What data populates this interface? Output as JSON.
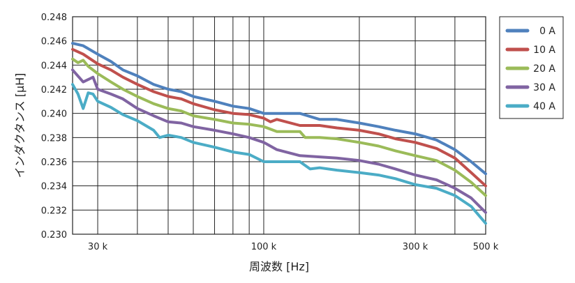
{
  "chart_data": {
    "type": "line",
    "title": "",
    "xlabel": "周波数 [Hz]",
    "ylabel": "インダクタンス [µH]",
    "x_scale": "log",
    "xlim": [
      25000,
      500000
    ],
    "ylim": [
      0.23,
      0.248
    ],
    "grid": true,
    "legend_position": "right",
    "x_ticks": [
      {
        "value": 30000,
        "label": "30 k"
      },
      {
        "value": 100000,
        "label": "100 k"
      },
      {
        "value": 300000,
        "label": "300 k"
      },
      {
        "value": 500000,
        "label": "500 k"
      }
    ],
    "y_ticks": [
      {
        "value": 0.23,
        "label": "0.230"
      },
      {
        "value": 0.232,
        "label": "0.232"
      },
      {
        "value": 0.234,
        "label": "0.234"
      },
      {
        "value": 0.236,
        "label": "0.236"
      },
      {
        "value": 0.238,
        "label": "0.238"
      },
      {
        "value": 0.24,
        "label": "0.240"
      },
      {
        "value": 0.242,
        "label": "0.242"
      },
      {
        "value": 0.244,
        "label": "0.244"
      },
      {
        "value": 0.246,
        "label": "0.246"
      },
      {
        "value": 0.248,
        "label": "0.248"
      }
    ],
    "series": [
      {
        "name": "0 A",
        "color": "#4f81bd",
        "x": [
          25000,
          27000,
          30000,
          33000,
          36000,
          40000,
          45000,
          50000,
          55000,
          60000,
          70000,
          80000,
          90000,
          100000,
          110000,
          130000,
          150000,
          170000,
          200000,
          230000,
          260000,
          300000,
          350000,
          400000,
          450000,
          500000
        ],
        "y": [
          0.2458,
          0.2456,
          0.2449,
          0.2443,
          0.2436,
          0.2431,
          0.2424,
          0.242,
          0.2418,
          0.2414,
          0.241,
          0.2406,
          0.2404,
          0.24,
          0.24,
          0.24,
          0.2395,
          0.2395,
          0.2392,
          0.2389,
          0.2386,
          0.2383,
          0.2378,
          0.237,
          0.236,
          0.235
        ]
      },
      {
        "name": "10 A",
        "color": "#c0504d",
        "x": [
          25000,
          27000,
          30000,
          33000,
          36000,
          40000,
          45000,
          50000,
          55000,
          60000,
          70000,
          80000,
          90000,
          100000,
          105000,
          110000,
          130000,
          150000,
          170000,
          200000,
          230000,
          260000,
          300000,
          350000,
          400000,
          450000,
          500000
        ],
        "y": [
          0.2453,
          0.2449,
          0.2441,
          0.2436,
          0.243,
          0.2424,
          0.2418,
          0.2414,
          0.2412,
          0.2408,
          0.2403,
          0.24,
          0.2399,
          0.2396,
          0.2393,
          0.2395,
          0.239,
          0.239,
          0.2388,
          0.2386,
          0.2383,
          0.2379,
          0.2376,
          0.2371,
          0.2363,
          0.2351,
          0.234
        ]
      },
      {
        "name": "20 A",
        "color": "#9bbb59",
        "x": [
          25000,
          26000,
          27000,
          28000,
          30000,
          33000,
          36000,
          40000,
          45000,
          50000,
          55000,
          60000,
          70000,
          80000,
          90000,
          100000,
          110000,
          130000,
          135000,
          150000,
          170000,
          200000,
          230000,
          260000,
          300000,
          350000,
          400000,
          450000,
          500000
        ],
        "y": [
          0.2445,
          0.2442,
          0.2444,
          0.2439,
          0.2433,
          0.2426,
          0.242,
          0.2414,
          0.2408,
          0.2404,
          0.2402,
          0.2398,
          0.2395,
          0.2392,
          0.2391,
          0.2389,
          0.2385,
          0.2385,
          0.238,
          0.238,
          0.2379,
          0.2376,
          0.2373,
          0.2369,
          0.2365,
          0.2361,
          0.2353,
          0.2343,
          0.2332
        ]
      },
      {
        "name": "30 A",
        "color": "#8064a2",
        "x": [
          25000,
          27000,
          28000,
          29000,
          30000,
          33000,
          36000,
          40000,
          45000,
          50000,
          55000,
          60000,
          70000,
          80000,
          90000,
          100000,
          110000,
          130000,
          150000,
          170000,
          200000,
          230000,
          260000,
          300000,
          350000,
          400000,
          450000,
          500000
        ],
        "y": [
          0.2436,
          0.2426,
          0.2428,
          0.243,
          0.242,
          0.2416,
          0.2412,
          0.2404,
          0.2398,
          0.2393,
          0.2392,
          0.2389,
          0.2386,
          0.2383,
          0.238,
          0.2376,
          0.237,
          0.2365,
          0.2364,
          0.2363,
          0.2361,
          0.2358,
          0.2354,
          0.2349,
          0.2345,
          0.2338,
          0.233,
          0.2318
        ]
      },
      {
        "name": "40 A",
        "color": "#4bacc6",
        "x": [
          25000,
          26000,
          27000,
          28000,
          29000,
          30000,
          33000,
          36000,
          40000,
          45000,
          47000,
          50000,
          55000,
          60000,
          70000,
          80000,
          90000,
          100000,
          110000,
          130000,
          140000,
          150000,
          170000,
          200000,
          230000,
          260000,
          300000,
          350000,
          400000,
          450000,
          500000
        ],
        "y": [
          0.2424,
          0.2416,
          0.2404,
          0.2417,
          0.2416,
          0.241,
          0.2405,
          0.2399,
          0.2394,
          0.2386,
          0.238,
          0.2382,
          0.238,
          0.2376,
          0.2372,
          0.2368,
          0.2366,
          0.236,
          0.236,
          0.236,
          0.2354,
          0.2355,
          0.2353,
          0.2351,
          0.2349,
          0.2346,
          0.2341,
          0.2338,
          0.2332,
          0.2323,
          0.2309
        ]
      }
    ]
  }
}
